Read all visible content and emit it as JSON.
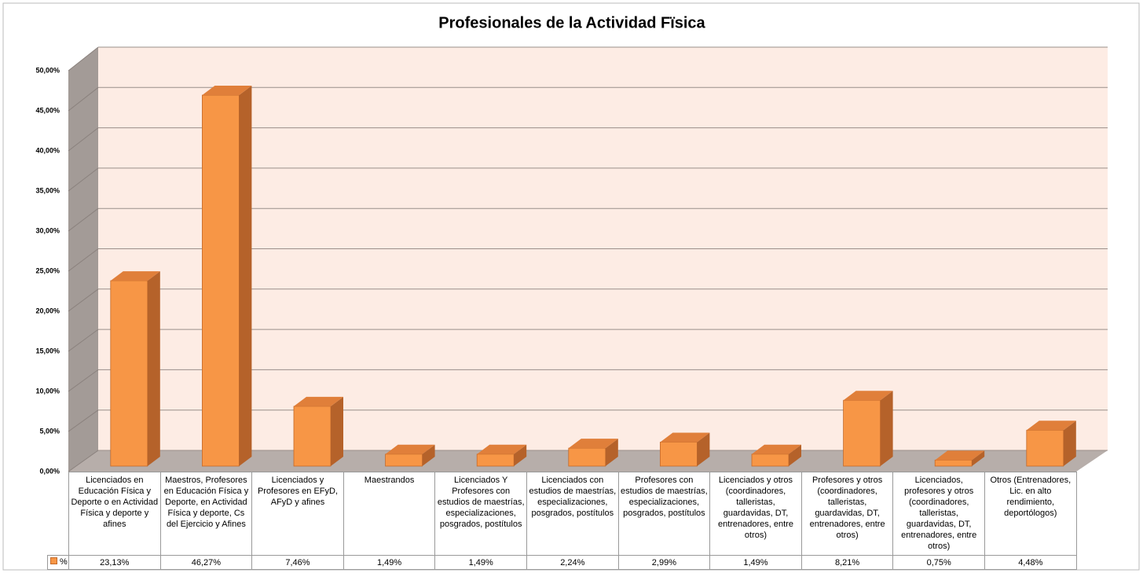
{
  "chart_data": {
    "type": "bar3d",
    "title": "Profesionales de la Actividad Fïsica",
    "categories": [
      "Licenciados en Educación Física y Deporte o en Actividad Física y deporte y afines",
      "Maestros, Profesores en Educación Física y Deporte, en Actividad Física y deporte, Cs del Ejercicio y Afines",
      "Licenciados y Profesores en EFyD, AFyD y afines",
      "Maestrandos",
      "Licenciados Y Profesores  con estudios de maestrías, especializaciones, posgrados, postítulos",
      "Licenciados  con estudios de maestrías, especializaciones, posgrados, postítulos",
      "Profesores  con estudios de maestrías, especializaciones, posgrados, postítulos",
      "Licenciados y otros (coordinadores, talleristas, guardavidas, DT, entrenadores, entre otros)",
      "Profesores  y otros (coordinadores, talleristas, guardavidas, DT, entrenadores, entre otros)",
      "Licenciados, profesores y otros (coordinadores, talleristas, guardavidas, DT, entrenadores, entre otros)",
      "Otros (Entrenadores, Lic. en alto rendimiento, deportólogos)"
    ],
    "series": [
      {
        "name": "%",
        "color": "#f79646",
        "values": [
          23.13,
          46.27,
          7.46,
          1.49,
          1.49,
          2.24,
          2.99,
          1.49,
          8.21,
          0.75,
          4.48
        ],
        "value_labels": [
          "23,13%",
          "46,27%",
          "7,46%",
          "1,49%",
          "1,49%",
          "2,24%",
          "2,99%",
          "1,49%",
          "8,21%",
          "0,75%",
          "4,48%"
        ]
      }
    ],
    "ylim": [
      0,
      50
    ],
    "yticks": [
      {
        "value": 0,
        "label": "0,00%"
      },
      {
        "value": 5,
        "label": "5,00%"
      },
      {
        "value": 10,
        "label": "10,00%"
      },
      {
        "value": 15,
        "label": "15,00%"
      },
      {
        "value": 20,
        "label": "20,00%"
      },
      {
        "value": 25,
        "label": "25,00%"
      },
      {
        "value": 30,
        "label": "30,00%"
      },
      {
        "value": 35,
        "label": "35,00%"
      },
      {
        "value": 40,
        "label": "40,00%"
      },
      {
        "value": 45,
        "label": "45,00%"
      },
      {
        "value": 50,
        "label": "50,00%"
      }
    ],
    "grid": true,
    "legend": "table"
  }
}
